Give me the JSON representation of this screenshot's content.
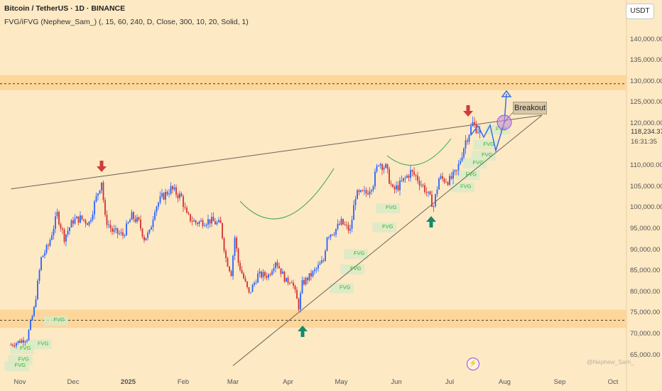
{
  "header": {
    "title": "Bitcoin / TetherUS · 1D · BINANCE",
    "indicator": "FVG/iFVG (Nephew_Sam_) (, 15, 60, 240, D, Close, 300, 10, 20, Solid, 1)"
  },
  "currency_button": "USDT",
  "price_label": {
    "value": "118,234.37",
    "countdown": "16:31:35"
  },
  "breakout_label": "Breakout",
  "watermark": "@Nephew_Sam_",
  "colors": {
    "background": "#fde9c4",
    "zone": "#fcd69a",
    "up_candle": "#2962ff",
    "down_candle": "#d32f2f",
    "fvg_box": "#d8eac8",
    "fvg_text": "#2eb82e",
    "curve": "#3fa34d",
    "arrow_down": "#d33b3b",
    "arrow_up": "#138a6b",
    "projection": "#3a6ee8"
  },
  "chart_data": {
    "type": "candlestick",
    "title": "Bitcoin / TetherUS · 1D · BINANCE",
    "y_axis": {
      "ticks": [
        "65,000.00",
        "70,000.00",
        "75,000.00",
        "80,000.00",
        "85,000.00",
        "90,000.00",
        "95,000.00",
        "100,000.00",
        "105,000.00",
        "110,000.00",
        "120,000.00",
        "125,000.00",
        "130,000.00",
        "135,000.00",
        "140,000.00"
      ],
      "values": [
        65000,
        70000,
        75000,
        80000,
        85000,
        90000,
        95000,
        100000,
        105000,
        110000,
        120000,
        125000,
        130000,
        135000,
        140000
      ],
      "ylim": [
        62000,
        146000
      ]
    },
    "x_axis": {
      "ticks": [
        "Nov",
        "Dec",
        "2025",
        "Feb",
        "Mar",
        "Apr",
        "May",
        "Jun",
        "Jul",
        "Aug",
        "Sep",
        "Oct"
      ],
      "dates": [
        "2024-11-01",
        "2024-12-01",
        "2025-01-01",
        "2025-02-01",
        "2025-03-01",
        "2025-04-01",
        "2025-05-01",
        "2025-06-01",
        "2025-07-01",
        "2025-08-01",
        "2025-09-01",
        "2025-10-01"
      ]
    },
    "price_path": [
      [
        "2024-10-27",
        67500
      ],
      [
        "2024-11-05",
        69000
      ],
      [
        "2024-11-09",
        76000
      ],
      [
        "2024-11-13",
        88000
      ],
      [
        "2024-11-17",
        91000
      ],
      [
        "2024-11-22",
        98500
      ],
      [
        "2024-11-26",
        93000
      ],
      [
        "2024-12-01",
        97000
      ],
      [
        "2024-12-05",
        97500
      ],
      [
        "2024-12-10",
        96500
      ],
      [
        "2024-12-13",
        101000
      ],
      [
        "2024-12-17",
        106500
      ],
      [
        "2024-12-19",
        97500
      ],
      [
        "2024-12-23",
        94500
      ],
      [
        "2024-12-29",
        93500
      ],
      [
        "2025-01-03",
        98000
      ],
      [
        "2025-01-07",
        96500
      ],
      [
        "2025-01-10",
        92800
      ],
      [
        "2025-01-13",
        94000
      ],
      [
        "2025-01-16",
        100000
      ],
      [
        "2025-01-20",
        102500
      ],
      [
        "2025-01-25",
        104500
      ],
      [
        "2025-01-31",
        102500
      ],
      [
        "2025-02-03",
        98000
      ],
      [
        "2025-02-08",
        96500
      ],
      [
        "2025-02-16",
        97000
      ],
      [
        "2025-02-22",
        96000
      ],
      [
        "2025-02-25",
        88000
      ],
      [
        "2025-02-28",
        84500
      ],
      [
        "2025-03-02",
        93000
      ],
      [
        "2025-03-04",
        87000
      ],
      [
        "2025-03-10",
        79500
      ],
      [
        "2025-03-15",
        84000
      ],
      [
        "2025-03-21",
        84000
      ],
      [
        "2025-03-25",
        87500
      ],
      [
        "2025-03-31",
        82500
      ],
      [
        "2025-04-03",
        83000
      ],
      [
        "2025-04-07",
        76500
      ],
      [
        "2025-04-09",
        82000
      ],
      [
        "2025-04-15",
        84500
      ],
      [
        "2025-04-21",
        87500
      ],
      [
        "2025-04-23",
        93500
      ],
      [
        "2025-04-27",
        94500
      ],
      [
        "2025-05-01",
        96500
      ],
      [
        "2025-05-06",
        94500
      ],
      [
        "2025-05-09",
        103000
      ],
      [
        "2025-05-15",
        103500
      ],
      [
        "2025-05-19",
        106000
      ],
      [
        "2025-05-22",
        111000
      ],
      [
        "2025-05-26",
        109500
      ],
      [
        "2025-05-30",
        104000
      ],
      [
        "2025-06-03",
        105500
      ],
      [
        "2025-06-09",
        108500
      ],
      [
        "2025-06-12",
        107500
      ],
      [
        "2025-06-17",
        104500
      ],
      [
        "2025-06-22",
        100500
      ],
      [
        "2025-06-25",
        107000
      ],
      [
        "2025-07-01",
        106500
      ],
      [
        "2025-07-05",
        108500
      ],
      [
        "2025-07-10",
        116000
      ],
      [
        "2025-07-14",
        120000
      ],
      [
        "2025-07-17",
        118500
      ],
      [
        "2025-07-18",
        118234.37
      ]
    ],
    "annotations": {
      "resistance_zone": [
        128000,
        131500
      ],
      "resistance_level": 129500,
      "support_zone": [
        71500,
        75800
      ],
      "support_level": 73300,
      "upper_trendline": [
        [
          "2024-10-27",
          104500
        ],
        [
          "2025-08-22",
          122000
        ]
      ],
      "lower_trendline": [
        [
          "2025-03-01",
          62500
        ],
        [
          "2025-08-22",
          122000
        ]
      ],
      "fvg_labels": [
        [
          "2024-10-29",
          62200
        ],
        [
          "2024-10-31",
          63700
        ],
        [
          "2024-11-01",
          66300
        ],
        [
          "2024-11-11",
          67400
        ],
        [
          "2024-11-20",
          73000
        ],
        [
          "2025-04-30",
          80700
        ],
        [
          "2025-05-06",
          85200
        ],
        [
          "2025-05-08",
          88800
        ],
        [
          "2025-05-24",
          95200
        ],
        [
          "2025-05-26",
          99700
        ],
        [
          "2025-07-07",
          104700
        ],
        [
          "2025-07-10",
          107600
        ],
        [
          "2025-07-14",
          110400
        ],
        [
          "2025-07-19",
          112200
        ],
        [
          "2025-07-20",
          114800
        ],
        [
          "2025-07-27",
          118400
        ]
      ],
      "breakout_label": "Breakout"
    }
  }
}
